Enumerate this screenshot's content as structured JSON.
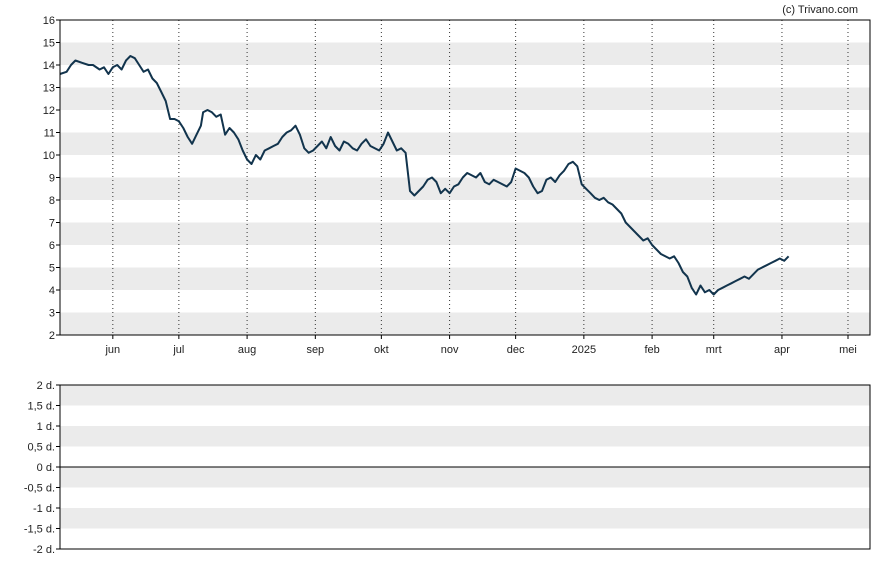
{
  "credit": "(c) Trivano.com",
  "colors": {
    "line": "#12344d",
    "band": "#ebebeb",
    "frame": "#000000",
    "grid": "#333333"
  },
  "chart_data": [
    {
      "type": "line",
      "title": "",
      "ylim": [
        2,
        16
      ],
      "y_ticks": [
        "2",
        "3",
        "4",
        "5",
        "6",
        "7",
        "8",
        "9",
        "10",
        "11",
        "12",
        "13",
        "14",
        "15",
        "16"
      ],
      "x_ticks": [
        {
          "label": "jun",
          "day": 24
        },
        {
          "label": "jul",
          "day": 54
        },
        {
          "label": "aug",
          "day": 85
        },
        {
          "label": "sep",
          "day": 116
        },
        {
          "label": "okt",
          "day": 146
        },
        {
          "label": "nov",
          "day": 177
        },
        {
          "label": "dec",
          "day": 207
        },
        {
          "label": "2025",
          "day": 238
        },
        {
          "label": "feb",
          "day": 269
        },
        {
          "label": "mrt",
          "day": 297
        },
        {
          "label": "apr",
          "day": 328
        },
        {
          "label": "mei",
          "day": 358
        }
      ],
      "x_range": [
        0,
        368
      ],
      "grid": "vertical dotted at month starts, alternating horizontal bands",
      "series": [
        {
          "values": [
            [
              0,
              13.6
            ],
            [
              3,
              13.7
            ],
            [
              5,
              14.0
            ],
            [
              7,
              14.2
            ],
            [
              10,
              14.1
            ],
            [
              13,
              14.0
            ],
            [
              15,
              14.0
            ],
            [
              18,
              13.8
            ],
            [
              20,
              13.9
            ],
            [
              22,
              13.6
            ],
            [
              24,
              13.9
            ],
            [
              26,
              14.0
            ],
            [
              28,
              13.8
            ],
            [
              30,
              14.2
            ],
            [
              32,
              14.4
            ],
            [
              34,
              14.3
            ],
            [
              36,
              14.0
            ],
            [
              38,
              13.7
            ],
            [
              40,
              13.8
            ],
            [
              42,
              13.4
            ],
            [
              44,
              13.2
            ],
            [
              46,
              12.8
            ],
            [
              48,
              12.4
            ],
            [
              50,
              11.6
            ],
            [
              52,
              11.6
            ],
            [
              54,
              11.5
            ],
            [
              56,
              11.2
            ],
            [
              58,
              10.8
            ],
            [
              60,
              10.5
            ],
            [
              62,
              10.9
            ],
            [
              64,
              11.3
            ],
            [
              65,
              11.9
            ],
            [
              67,
              12.0
            ],
            [
              69,
              11.9
            ],
            [
              71,
              11.7
            ],
            [
              73,
              11.8
            ],
            [
              75,
              10.9
            ],
            [
              77,
              11.2
            ],
            [
              79,
              11.0
            ],
            [
              81,
              10.7
            ],
            [
              83,
              10.2
            ],
            [
              85,
              9.8
            ],
            [
              87,
              9.6
            ],
            [
              89,
              10.0
            ],
            [
              91,
              9.8
            ],
            [
              93,
              10.2
            ],
            [
              95,
              10.3
            ],
            [
              97,
              10.4
            ],
            [
              99,
              10.5
            ],
            [
              101,
              10.8
            ],
            [
              103,
              11.0
            ],
            [
              105,
              11.1
            ],
            [
              107,
              11.3
            ],
            [
              109,
              10.9
            ],
            [
              111,
              10.3
            ],
            [
              113,
              10.1
            ],
            [
              115,
              10.2
            ],
            [
              117,
              10.4
            ],
            [
              119,
              10.6
            ],
            [
              121,
              10.3
            ],
            [
              123,
              10.8
            ],
            [
              125,
              10.4
            ],
            [
              127,
              10.2
            ],
            [
              129,
              10.6
            ],
            [
              131,
              10.5
            ],
            [
              133,
              10.3
            ],
            [
              135,
              10.2
            ],
            [
              137,
              10.5
            ],
            [
              139,
              10.7
            ],
            [
              141,
              10.4
            ],
            [
              143,
              10.3
            ],
            [
              145,
              10.2
            ],
            [
              147,
              10.5
            ],
            [
              149,
              11.0
            ],
            [
              151,
              10.6
            ],
            [
              153,
              10.2
            ],
            [
              155,
              10.3
            ],
            [
              157,
              10.1
            ],
            [
              159,
              8.4
            ],
            [
              161,
              8.2
            ],
            [
              163,
              8.4
            ],
            [
              165,
              8.6
            ],
            [
              167,
              8.9
            ],
            [
              169,
              9.0
            ],
            [
              171,
              8.8
            ],
            [
              173,
              8.3
            ],
            [
              175,
              8.5
            ],
            [
              177,
              8.3
            ],
            [
              179,
              8.6
            ],
            [
              181,
              8.7
            ],
            [
              183,
              9.0
            ],
            [
              185,
              9.2
            ],
            [
              187,
              9.1
            ],
            [
              189,
              9.0
            ],
            [
              191,
              9.2
            ],
            [
              193,
              8.8
            ],
            [
              195,
              8.7
            ],
            [
              197,
              8.9
            ],
            [
              199,
              8.8
            ],
            [
              201,
              8.7
            ],
            [
              203,
              8.6
            ],
            [
              205,
              8.8
            ],
            [
              207,
              9.4
            ],
            [
              209,
              9.3
            ],
            [
              211,
              9.2
            ],
            [
              213,
              9.0
            ],
            [
              215,
              8.6
            ],
            [
              217,
              8.3
            ],
            [
              219,
              8.4
            ],
            [
              221,
              8.9
            ],
            [
              223,
              9.0
            ],
            [
              225,
              8.8
            ],
            [
              227,
              9.1
            ],
            [
              229,
              9.3
            ],
            [
              231,
              9.6
            ],
            [
              233,
              9.7
            ],
            [
              235,
              9.5
            ],
            [
              237,
              8.7
            ],
            [
              239,
              8.5
            ],
            [
              241,
              8.3
            ],
            [
              243,
              8.1
            ],
            [
              245,
              8.0
            ],
            [
              247,
              8.1
            ],
            [
              249,
              7.9
            ],
            [
              251,
              7.8
            ],
            [
              253,
              7.6
            ],
            [
              255,
              7.4
            ],
            [
              257,
              7.0
            ],
            [
              259,
              6.8
            ],
            [
              261,
              6.6
            ],
            [
              263,
              6.4
            ],
            [
              265,
              6.2
            ],
            [
              267,
              6.3
            ],
            [
              269,
              6.0
            ],
            [
              271,
              5.8
            ],
            [
              273,
              5.6
            ],
            [
              275,
              5.5
            ],
            [
              277,
              5.4
            ],
            [
              279,
              5.5
            ],
            [
              281,
              5.2
            ],
            [
              283,
              4.8
            ],
            [
              285,
              4.6
            ],
            [
              287,
              4.1
            ],
            [
              289,
              3.8
            ],
            [
              291,
              4.2
            ],
            [
              293,
              3.9
            ],
            [
              295,
              4.0
            ],
            [
              297,
              3.8
            ],
            [
              299,
              4.0
            ],
            [
              301,
              4.1
            ],
            [
              303,
              4.2
            ],
            [
              305,
              4.3
            ],
            [
              307,
              4.4
            ],
            [
              309,
              4.5
            ],
            [
              311,
              4.6
            ],
            [
              313,
              4.5
            ],
            [
              315,
              4.7
            ],
            [
              317,
              4.9
            ],
            [
              319,
              5.0
            ],
            [
              321,
              5.1
            ],
            [
              323,
              5.2
            ],
            [
              325,
              5.3
            ],
            [
              327,
              5.4
            ],
            [
              329,
              5.3
            ],
            [
              331,
              5.5
            ]
          ]
        }
      ]
    },
    {
      "type": "line",
      "title": "",
      "ylim": [
        -2,
        2
      ],
      "y_ticks": [
        "2 d.",
        "1,5 d.",
        "1 d.",
        "0,5 d.",
        "0 d.",
        "-0,5 d.",
        "-1 d.",
        "-1,5 d.",
        "-2 d."
      ],
      "zero_line": 0,
      "series": []
    }
  ]
}
